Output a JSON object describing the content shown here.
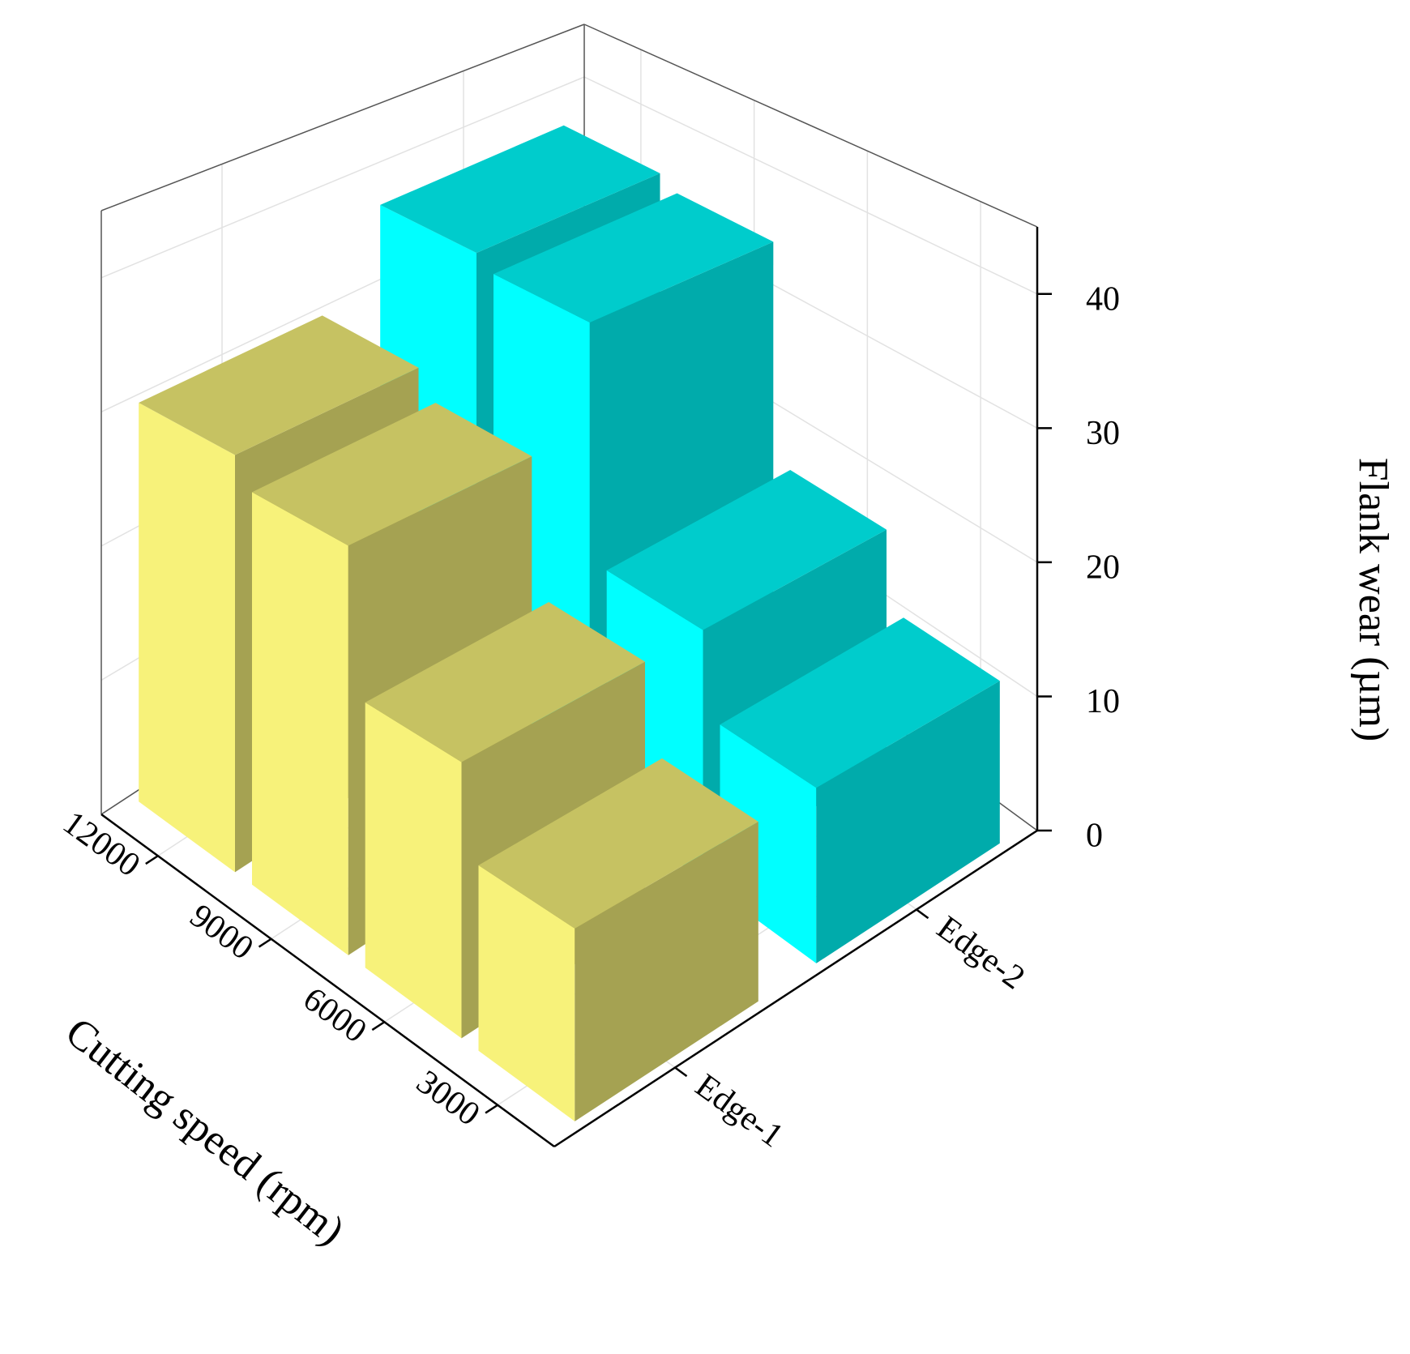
{
  "chart_data": {
    "type": "bar3d",
    "x_label": "Cutting speed (rpm)",
    "y_label": "Flank wear (µm)",
    "categories": [
      "12000",
      "9000",
      "6000",
      "3000"
    ],
    "series": [
      {
        "name": "Edge-1",
        "color": "#f7f27a",
        "values": [
          30,
          28,
          18,
          12
        ]
      },
      {
        "name": "Edge-2",
        "color": "#00ffff",
        "values": [
          37,
          36,
          18,
          12
        ]
      }
    ],
    "ylim": [
      0,
      45
    ],
    "yticks": [
      0,
      10,
      20,
      30,
      40
    ],
    "grid": true
  }
}
